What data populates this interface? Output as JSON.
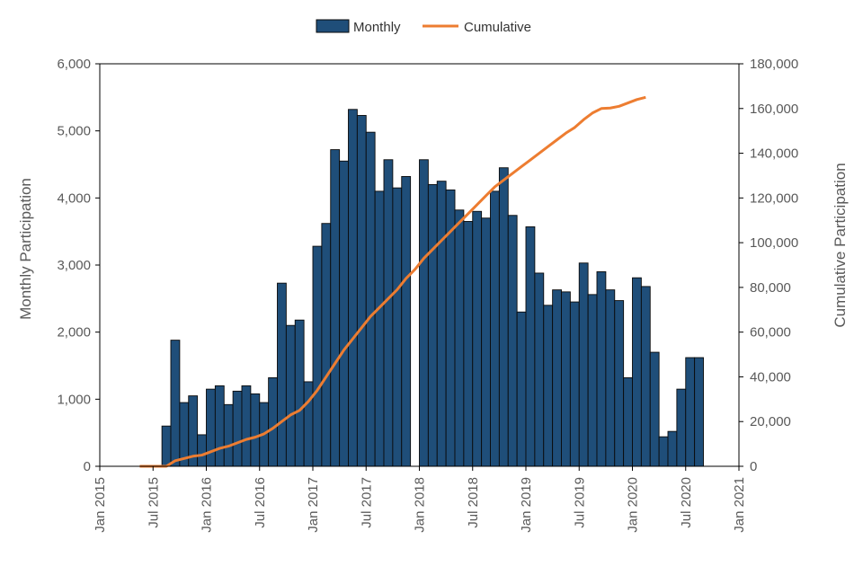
{
  "chart_data": {
    "type": "bar",
    "legend_position": "top-center",
    "grid": false,
    "colors": {
      "bar_fill": "#1F4E79",
      "bar_edge": "#0A0A0A",
      "line": "#ED7D31",
      "axis": "#000000",
      "text": "#595959"
    },
    "legend": {
      "bar_label": "Monthly",
      "line_label": "Cumulative"
    },
    "ylabel_left": "Monthly Participation",
    "ylabel_right": "Cumulative Participation",
    "ylim_left": [
      0,
      6000
    ],
    "ylim_right": [
      0,
      180000
    ],
    "yticks_left": [
      "0",
      "1,000",
      "2,000",
      "3,000",
      "4,000",
      "5,000",
      "6,000"
    ],
    "yticks_right": [
      "0",
      "20,000",
      "40,000",
      "60,000",
      "80,000",
      "100,000",
      "120,000",
      "140,000",
      "160,000",
      "180,000"
    ],
    "xticks": [
      "Jan 2015",
      "Jul 2015",
      "Jan 2016",
      "Jul 2016",
      "Jan 2017",
      "Jul 2017",
      "Jan 2018",
      "Jul 2018",
      "Jan 2019",
      "Jul 2019",
      "Jan 2020",
      "Jul 2020",
      "Jan 2021"
    ],
    "x_start": "Jan 2015",
    "months": [
      "2015-08",
      "2015-09",
      "2015-10",
      "2015-11",
      "2015-12",
      "2016-01",
      "2016-02",
      "2016-03",
      "2016-04",
      "2016-05",
      "2016-06",
      "2016-07",
      "2016-08",
      "2016-09",
      "2016-10",
      "2016-11",
      "2016-12",
      "2017-01",
      "2017-02",
      "2017-03",
      "2017-04",
      "2017-05",
      "2017-06",
      "2017-07",
      "2017-08",
      "2017-09",
      "2017-10",
      "2017-11",
      "2017-12",
      "2018-01",
      "2018-02",
      "2018-03",
      "2018-04",
      "2018-05",
      "2018-06",
      "2018-07",
      "2018-08",
      "2018-09",
      "2018-10",
      "2018-11",
      "2018-12",
      "2019-01",
      "2019-02",
      "2019-03",
      "2019-04",
      "2019-05",
      "2019-06",
      "2019-07",
      "2019-08",
      "2019-09",
      "2019-10",
      "2019-11",
      "2019-12",
      "2020-01",
      "2020-02",
      "2020-03",
      "2020-04",
      "2020-05",
      "2020-06",
      "2020-07",
      "2020-08",
      "2020-09"
    ],
    "monthly": [
      600,
      1880,
      950,
      1050,
      470,
      1150,
      1200,
      920,
      1120,
      1200,
      1080,
      950,
      1320,
      2730,
      2100,
      2180,
      1260,
      3280,
      3620,
      4720,
      4550,
      5320,
      5230,
      4980,
      4100,
      4570,
      4150,
      4320,
      0,
      4570,
      4200,
      4250,
      4120,
      3820,
      3650,
      3800,
      3700,
      4100,
      4450,
      3740,
      2300,
      3570,
      2880,
      2400,
      2630,
      2600,
      2450,
      3030,
      2560,
      2900,
      2630,
      2470,
      1320,
      2810,
      2680,
      1700,
      440,
      520,
      1150,
      1620,
      1620,
      0
    ],
    "cumulative_months": [
      "2015-05",
      "2015-06",
      "2015-07",
      "2015-08",
      "2015-09",
      "2015-10",
      "2015-11",
      "2015-12",
      "2016-01",
      "2016-02",
      "2016-03",
      "2016-04",
      "2016-05",
      "2016-06",
      "2016-07",
      "2016-08",
      "2016-09",
      "2016-10",
      "2016-11",
      "2016-12",
      "2017-01",
      "2017-02",
      "2017-03",
      "2017-04",
      "2017-05",
      "2017-06",
      "2017-07",
      "2017-08",
      "2017-09",
      "2017-10",
      "2017-11",
      "2017-12",
      "2018-01",
      "2018-02",
      "2018-03",
      "2018-04",
      "2018-05",
      "2018-06",
      "2018-07",
      "2018-08",
      "2018-09",
      "2018-10",
      "2018-11",
      "2018-12",
      "2019-01",
      "2019-02",
      "2019-03",
      "2019-04",
      "2019-05",
      "2019-06",
      "2019-07",
      "2019-08",
      "2019-09",
      "2019-10",
      "2019-11",
      "2019-12",
      "2020-01",
      "2020-02",
      "2020-03",
      "2020-04",
      "2020-05",
      "2020-06",
      "2020-07",
      "2020-08",
      "2020-09"
    ],
    "cumulative": [
      0,
      0,
      0,
      0,
      2500,
      3500,
      4500,
      5000,
      6500,
      8000,
      9000,
      10500,
      12000,
      13000,
      14500,
      17000,
      20000,
      23000,
      25000,
      29000,
      34000,
      40000,
      46000,
      52000,
      57000,
      62000,
      67000,
      71000,
      75000,
      79000,
      84000,
      88000,
      93000,
      97000,
      101000,
      105000,
      109000,
      113000,
      117000,
      121000,
      125000,
      128000,
      131000,
      134000,
      137000,
      140000,
      143000,
      146000,
      149000,
      151500,
      155000,
      158000,
      160000,
      160200,
      161000,
      162500,
      164000,
      165000,
      0,
      0,
      0,
      0,
      0,
      0,
      0
    ]
  }
}
